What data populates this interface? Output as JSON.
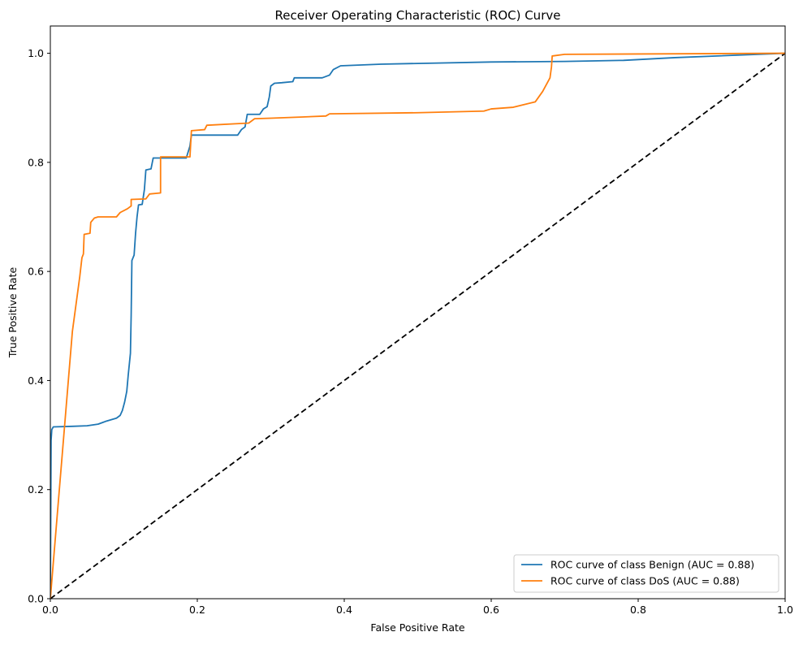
{
  "chart_data": {
    "type": "line",
    "title": "Receiver Operating Characteristic (ROC) Curve",
    "xlabel": "False Positive Rate",
    "ylabel": "True Positive Rate",
    "xlim": [
      0,
      1
    ],
    "ylim": [
      0,
      1.05
    ],
    "xticks": [
      {
        "value": 0.0,
        "label": "0.0"
      },
      {
        "value": 0.2,
        "label": "0.2"
      },
      {
        "value": 0.4,
        "label": "0.4"
      },
      {
        "value": 0.6,
        "label": "0.6"
      },
      {
        "value": 0.8,
        "label": "0.8"
      },
      {
        "value": 1.0,
        "label": "1.0"
      }
    ],
    "yticks": [
      {
        "value": 0.0,
        "label": "0.0"
      },
      {
        "value": 0.2,
        "label": "0.2"
      },
      {
        "value": 0.4,
        "label": "0.4"
      },
      {
        "value": 0.6,
        "label": "0.6"
      },
      {
        "value": 0.8,
        "label": "0.8"
      },
      {
        "value": 1.0,
        "label": "1.0"
      }
    ],
    "grid": false,
    "legend_position": "lower right",
    "series": [
      {
        "name": "ROC curve of class Benign (AUC = 0.88)",
        "color": "#1f77b4",
        "style": "solid",
        "points": [
          [
            0.0,
            0.0
          ],
          [
            0.001,
            0.29
          ],
          [
            0.002,
            0.31
          ],
          [
            0.004,
            0.315
          ],
          [
            0.03,
            0.316
          ],
          [
            0.05,
            0.317
          ],
          [
            0.065,
            0.32
          ],
          [
            0.075,
            0.325
          ],
          [
            0.09,
            0.331
          ],
          [
            0.095,
            0.336
          ],
          [
            0.098,
            0.345
          ],
          [
            0.101,
            0.36
          ],
          [
            0.104,
            0.38
          ],
          [
            0.106,
            0.41
          ],
          [
            0.109,
            0.45
          ],
          [
            0.11,
            0.52
          ],
          [
            0.111,
            0.62
          ],
          [
            0.114,
            0.63
          ],
          [
            0.116,
            0.67
          ],
          [
            0.118,
            0.7
          ],
          [
            0.12,
            0.722
          ],
          [
            0.125,
            0.723
          ],
          [
            0.128,
            0.75
          ],
          [
            0.13,
            0.786
          ],
          [
            0.137,
            0.788
          ],
          [
            0.14,
            0.808
          ],
          [
            0.155,
            0.808
          ],
          [
            0.185,
            0.808
          ],
          [
            0.19,
            0.83
          ],
          [
            0.192,
            0.85
          ],
          [
            0.205,
            0.85
          ],
          [
            0.22,
            0.85
          ],
          [
            0.255,
            0.85
          ],
          [
            0.26,
            0.86
          ],
          [
            0.265,
            0.865
          ],
          [
            0.268,
            0.888
          ],
          [
            0.285,
            0.888
          ],
          [
            0.29,
            0.898
          ],
          [
            0.295,
            0.902
          ],
          [
            0.298,
            0.92
          ],
          [
            0.3,
            0.94
          ],
          [
            0.305,
            0.945
          ],
          [
            0.315,
            0.946
          ],
          [
            0.33,
            0.948
          ],
          [
            0.332,
            0.955
          ],
          [
            0.37,
            0.955
          ],
          [
            0.38,
            0.96
          ],
          [
            0.385,
            0.97
          ],
          [
            0.395,
            0.977
          ],
          [
            0.45,
            0.98
          ],
          [
            0.6,
            0.984
          ],
          [
            0.7,
            0.985
          ],
          [
            0.78,
            0.987
          ],
          [
            0.85,
            0.992
          ],
          [
            1.0,
            1.0
          ]
        ]
      },
      {
        "name": "ROC curve of class DoS (AUC = 0.88)",
        "color": "#ff7f0e",
        "style": "solid",
        "points": [
          [
            0.0,
            0.0
          ],
          [
            0.03,
            0.49
          ],
          [
            0.04,
            0.59
          ],
          [
            0.043,
            0.625
          ],
          [
            0.045,
            0.632
          ],
          [
            0.046,
            0.668
          ],
          [
            0.054,
            0.67
          ],
          [
            0.055,
            0.69
          ],
          [
            0.06,
            0.698
          ],
          [
            0.065,
            0.7
          ],
          [
            0.09,
            0.7
          ],
          [
            0.095,
            0.708
          ],
          [
            0.105,
            0.715
          ],
          [
            0.11,
            0.72
          ],
          [
            0.11,
            0.732
          ],
          [
            0.13,
            0.733
          ],
          [
            0.135,
            0.742
          ],
          [
            0.15,
            0.744
          ],
          [
            0.15,
            0.81
          ],
          [
            0.19,
            0.81
          ],
          [
            0.192,
            0.858
          ],
          [
            0.21,
            0.86
          ],
          [
            0.213,
            0.868
          ],
          [
            0.27,
            0.872
          ],
          [
            0.278,
            0.88
          ],
          [
            0.3,
            0.881
          ],
          [
            0.34,
            0.883
          ],
          [
            0.375,
            0.885
          ],
          [
            0.38,
            0.889
          ],
          [
            0.5,
            0.891
          ],
          [
            0.59,
            0.894
          ],
          [
            0.6,
            0.898
          ],
          [
            0.63,
            0.901
          ],
          [
            0.66,
            0.911
          ],
          [
            0.67,
            0.93
          ],
          [
            0.68,
            0.955
          ],
          [
            0.682,
            0.975
          ],
          [
            0.683,
            0.995
          ],
          [
            0.7,
            0.998
          ],
          [
            1.0,
            1.0
          ]
        ]
      },
      {
        "name": "",
        "color": "#000000",
        "style": "dashed",
        "points": [
          [
            0.0,
            0.0
          ],
          [
            1.0,
            1.0
          ]
        ]
      }
    ]
  }
}
